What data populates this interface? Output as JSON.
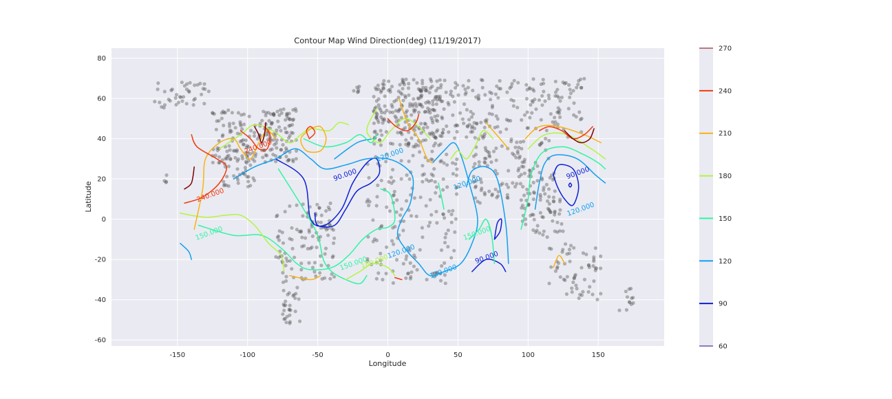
{
  "chart_data": {
    "type": "contour",
    "title": "Contour Map Wind Direction(deg) (11/19/2017)",
    "xlabel": "Longitude",
    "ylabel": "Latitude",
    "xlim": [
      -197,
      197
    ],
    "ylim": [
      -63,
      85
    ],
    "xticks": [
      -150,
      -100,
      -50,
      0,
      50,
      100,
      150
    ],
    "yticks": [
      -60,
      -40,
      -20,
      0,
      20,
      40,
      60,
      80
    ],
    "grid": true,
    "colorbar": {
      "levels": [
        60,
        90,
        120,
        150,
        180,
        210,
        240,
        270
      ],
      "colors": [
        "#2a0080",
        "#0a1fd6",
        "#0ea0f0",
        "#2ef5a2",
        "#b2f542",
        "#f7b412",
        "#f03a0c",
        "#7a0000"
      ]
    },
    "contour_labels": [
      {
        "text": "90.000",
        "x": -30,
        "y": 21,
        "level": 90
      },
      {
        "text": "90.000",
        "x": 136,
        "y": 22,
        "level": 90
      },
      {
        "text": "90.000",
        "x": 71,
        "y": -20,
        "level": 90
      },
      {
        "text": "120.000",
        "x": 57,
        "y": 17,
        "level": 120
      },
      {
        "text": "120.000",
        "x": 2,
        "y": 31,
        "level": 120
      },
      {
        "text": "120.000",
        "x": 138,
        "y": 4,
        "level": 120
      },
      {
        "text": "120.000",
        "x": 10,
        "y": -17,
        "level": 120
      },
      {
        "text": "120.000",
        "x": 40,
        "y": -27,
        "level": 120
      },
      {
        "text": "150.000",
        "x": -127,
        "y": -8,
        "level": 150
      },
      {
        "text": "150.000",
        "x": 64,
        "y": -8,
        "level": 150
      },
      {
        "text": "150.000",
        "x": -24,
        "y": -23,
        "level": 150
      },
      {
        "text": "180.000",
        "x": -9,
        "y": -22,
        "level": 180
      },
      {
        "text": "240.000",
        "x": -126,
        "y": 11,
        "level": 240
      },
      {
        "text": "240.000",
        "x": -92,
        "y": 35,
        "level": 240
      }
    ],
    "contours": [
      {
        "level": 90,
        "points": [
          [
            -80,
            30
          ],
          [
            -60,
            20
          ],
          [
            -55,
            0
          ],
          [
            -45,
            -3
          ],
          [
            -33,
            5
          ],
          [
            -25,
            18
          ],
          [
            -15,
            28
          ],
          [
            -8,
            30
          ],
          [
            -6,
            23
          ],
          [
            -12,
            18
          ],
          [
            -22,
            14
          ],
          [
            -30,
            5
          ],
          [
            -38,
            -3
          ],
          [
            -50,
            -3
          ],
          [
            -52,
            3
          ]
        ]
      },
      {
        "level": 90,
        "points": [
          [
            118,
            22
          ],
          [
            122,
            27
          ],
          [
            132,
            25
          ],
          [
            136,
            16
          ],
          [
            132,
            7
          ],
          [
            126,
            10
          ],
          [
            121,
            16
          ],
          [
            118,
            22
          ]
        ]
      },
      {
        "level": 90,
        "points": [
          [
            130,
            18
          ],
          [
            131,
            17
          ],
          [
            130,
            16
          ],
          [
            129,
            17
          ],
          [
            130,
            18
          ]
        ]
      },
      {
        "level": 90,
        "points": [
          [
            60,
            -26
          ],
          [
            70,
            -20
          ],
          [
            80,
            -22
          ],
          [
            84,
            -26
          ]
        ]
      },
      {
        "level": 90,
        "points": [
          [
            76,
            -10
          ],
          [
            80,
            -6
          ],
          [
            81,
            0
          ],
          [
            78,
            -2
          ],
          [
            76,
            -10
          ]
        ]
      },
      {
        "level": 120,
        "points": [
          [
            -110,
            20
          ],
          [
            -95,
            26
          ],
          [
            -80,
            30
          ],
          [
            -66,
            35
          ],
          [
            -55,
            30
          ],
          [
            -45,
            25
          ],
          [
            -30,
            27
          ],
          [
            -15,
            30
          ],
          [
            0,
            30
          ],
          [
            12,
            26
          ],
          [
            18,
            20
          ],
          [
            16,
            8
          ],
          [
            10,
            0
          ],
          [
            7,
            -8
          ],
          [
            14,
            -16
          ],
          [
            22,
            -22
          ],
          [
            30,
            -28
          ],
          [
            40,
            -26
          ],
          [
            52,
            -22
          ],
          [
            60,
            -12
          ],
          [
            64,
            0
          ],
          [
            58,
            18
          ],
          [
            52,
            32
          ],
          [
            47,
            38
          ],
          [
            40,
            34
          ],
          [
            32,
            28
          ]
        ]
      },
      {
        "level": 120,
        "points": [
          [
            56,
            16
          ],
          [
            60,
            24
          ],
          [
            70,
            26
          ],
          [
            78,
            20
          ],
          [
            84,
            -2
          ],
          [
            86,
            -22
          ]
        ]
      },
      {
        "level": 120,
        "points": [
          [
            105,
            5
          ],
          [
            108,
            18
          ],
          [
            112,
            28
          ],
          [
            120,
            32
          ],
          [
            135,
            30
          ],
          [
            148,
            22
          ],
          [
            155,
            18
          ]
        ]
      },
      {
        "level": 120,
        "points": [
          [
            -148,
            -12
          ],
          [
            -142,
            -16
          ],
          [
            -140,
            -20
          ]
        ]
      },
      {
        "level": 120,
        "points": [
          [
            -38,
            30
          ],
          [
            -22,
            38
          ],
          [
            -10,
            40
          ]
        ]
      },
      {
        "level": 150,
        "points": [
          [
            -135,
            -3
          ],
          [
            -110,
            -8
          ],
          [
            -90,
            -8
          ],
          [
            -75,
            -15
          ],
          [
            -65,
            -22
          ],
          [
            -56,
            -25
          ],
          [
            -40,
            -24
          ],
          [
            -28,
            -18
          ],
          [
            -18,
            -10
          ],
          [
            -8,
            -5
          ],
          [
            0,
            -4
          ],
          [
            5,
            0
          ],
          [
            2,
            12
          ],
          [
            -5,
            15
          ]
        ]
      },
      {
        "level": 150,
        "points": [
          [
            -60,
            40
          ],
          [
            -45,
            36
          ],
          [
            -30,
            38
          ],
          [
            -20,
            42
          ],
          [
            -12,
            38
          ],
          [
            -8,
            42
          ]
        ]
      },
      {
        "level": 150,
        "points": [
          [
            -78,
            25
          ],
          [
            -60,
            5
          ],
          [
            -50,
            -8
          ],
          [
            -46,
            -20
          ],
          [
            -40,
            -26
          ],
          [
            -30,
            -30
          ],
          [
            -20,
            -32
          ],
          [
            -15,
            -28
          ]
        ]
      },
      {
        "level": 150,
        "points": [
          [
            40,
            5
          ],
          [
            38,
            12
          ],
          [
            36,
            18
          ]
        ]
      },
      {
        "level": 150,
        "points": [
          [
            58,
            -10
          ],
          [
            65,
            -5
          ],
          [
            70,
            0
          ],
          [
            74,
            -8
          ],
          [
            76,
            -22
          ]
        ]
      },
      {
        "level": 150,
        "points": [
          [
            95,
            -5
          ],
          [
            100,
            10
          ],
          [
            102,
            22
          ],
          [
            110,
            33
          ],
          [
            125,
            36
          ],
          [
            140,
            32
          ],
          [
            150,
            28
          ],
          [
            155,
            25
          ]
        ]
      },
      {
        "level": 180,
        "points": [
          [
            -148,
            3
          ],
          [
            -130,
            1
          ],
          [
            -115,
            2
          ],
          [
            -105,
            2
          ],
          [
            -95,
            -3
          ],
          [
            -85,
            -12
          ],
          [
            -76,
            -18
          ],
          [
            -74,
            -26
          ]
        ]
      },
      {
        "level": 180,
        "points": [
          [
            -120,
            35
          ],
          [
            -105,
            42
          ],
          [
            -95,
            47
          ],
          [
            -82,
            44
          ],
          [
            -70,
            38
          ],
          [
            -62,
            42
          ],
          [
            -55,
            45
          ],
          [
            -42,
            44
          ],
          [
            -35,
            48
          ],
          [
            -28,
            47
          ]
        ]
      },
      {
        "level": 180,
        "points": [
          [
            -8,
            55
          ],
          [
            -15,
            44
          ],
          [
            -6,
            38
          ],
          [
            2,
            44
          ],
          [
            12,
            50
          ],
          [
            22,
            46
          ],
          [
            30,
            40
          ]
        ]
      },
      {
        "level": 180,
        "points": [
          [
            -30,
            -30
          ],
          [
            -20,
            -26
          ],
          [
            -10,
            -22
          ],
          [
            0,
            -24
          ],
          [
            5,
            -28
          ]
        ]
      },
      {
        "level": 180,
        "points": [
          [
            45,
            30
          ],
          [
            50,
            34
          ],
          [
            56,
            30
          ],
          [
            62,
            36
          ],
          [
            68,
            44
          ],
          [
            75,
            40
          ]
        ]
      },
      {
        "level": 180,
        "points": [
          [
            100,
            35
          ],
          [
            112,
            42
          ],
          [
            128,
            42
          ],
          [
            145,
            35
          ],
          [
            155,
            30
          ]
        ]
      },
      {
        "level": 210,
        "points": [
          [
            -138,
            -5
          ],
          [
            -132,
            15
          ],
          [
            -130,
            30
          ],
          [
            -120,
            38
          ],
          [
            -110,
            40
          ],
          [
            -105,
            35
          ],
          [
            -98,
            30
          ],
          [
            -92,
            38
          ],
          [
            -86,
            44
          ],
          [
            -80,
            40
          ]
        ]
      },
      {
        "level": 210,
        "points": [
          [
            -55,
            45
          ],
          [
            -62,
            40
          ],
          [
            -58,
            34
          ],
          [
            -48,
            34
          ],
          [
            -44,
            40
          ],
          [
            -48,
            46
          ],
          [
            -55,
            45
          ]
        ]
      },
      {
        "level": 210,
        "points": [
          [
            8,
            60
          ],
          [
            14,
            48
          ],
          [
            22,
            40
          ],
          [
            28,
            30
          ],
          [
            32,
            28
          ]
        ]
      },
      {
        "level": 210,
        "points": [
          [
            70,
            48
          ],
          [
            75,
            44
          ],
          [
            80,
            40
          ],
          [
            86,
            35
          ]
        ]
      },
      {
        "level": 210,
        "points": [
          [
            98,
            40
          ],
          [
            108,
            46
          ],
          [
            122,
            46
          ],
          [
            140,
            42
          ],
          [
            152,
            38
          ]
        ]
      },
      {
        "level": 210,
        "points": [
          [
            -70,
            -28
          ],
          [
            -55,
            -30
          ],
          [
            -48,
            -28
          ]
        ]
      },
      {
        "level": 210,
        "points": [
          [
            118,
            -24
          ],
          [
            122,
            -18
          ],
          [
            126,
            -22
          ]
        ]
      },
      {
        "level": 240,
        "points": [
          [
            -145,
            8
          ],
          [
            -132,
            11
          ],
          [
            -120,
            18
          ],
          [
            -115,
            26
          ],
          [
            -122,
            30
          ],
          [
            -136,
            36
          ],
          [
            -140,
            42
          ]
        ]
      },
      {
        "level": 240,
        "points": [
          [
            -105,
            44
          ],
          [
            -98,
            40
          ],
          [
            -92,
            35
          ],
          [
            -86,
            35
          ],
          [
            -84,
            42
          ],
          [
            -88,
            46
          ]
        ]
      },
      {
        "level": 240,
        "points": [
          [
            -56,
            40
          ],
          [
            -58,
            44
          ],
          [
            -55,
            46
          ],
          [
            -52,
            43
          ],
          [
            -56,
            40
          ]
        ]
      },
      {
        "level": 240,
        "points": [
          [
            0,
            50
          ],
          [
            6,
            46
          ],
          [
            14,
            44
          ],
          [
            20,
            48
          ],
          [
            22,
            52
          ]
        ]
      },
      {
        "level": 240,
        "points": [
          [
            108,
            44
          ],
          [
            115,
            46
          ],
          [
            124,
            44
          ],
          [
            132,
            40
          ],
          [
            140,
            42
          ],
          [
            146,
            46
          ]
        ]
      },
      {
        "level": 240,
        "points": [
          [
            5,
            -29
          ],
          [
            10,
            -30
          ]
        ]
      },
      {
        "level": 270,
        "points": [
          [
            -145,
            15
          ],
          [
            -140,
            18
          ],
          [
            -138,
            26
          ]
        ]
      },
      {
        "level": 270,
        "points": [
          [
            -95,
            46
          ],
          [
            -92,
            42
          ],
          [
            -90,
            38
          ],
          [
            -88,
            42
          ],
          [
            -87,
            48
          ]
        ]
      },
      {
        "level": 270,
        "points": [
          [
            126,
            44
          ],
          [
            132,
            40
          ],
          [
            138,
            38
          ],
          [
            144,
            40
          ],
          [
            147,
            45
          ]
        ]
      }
    ]
  }
}
